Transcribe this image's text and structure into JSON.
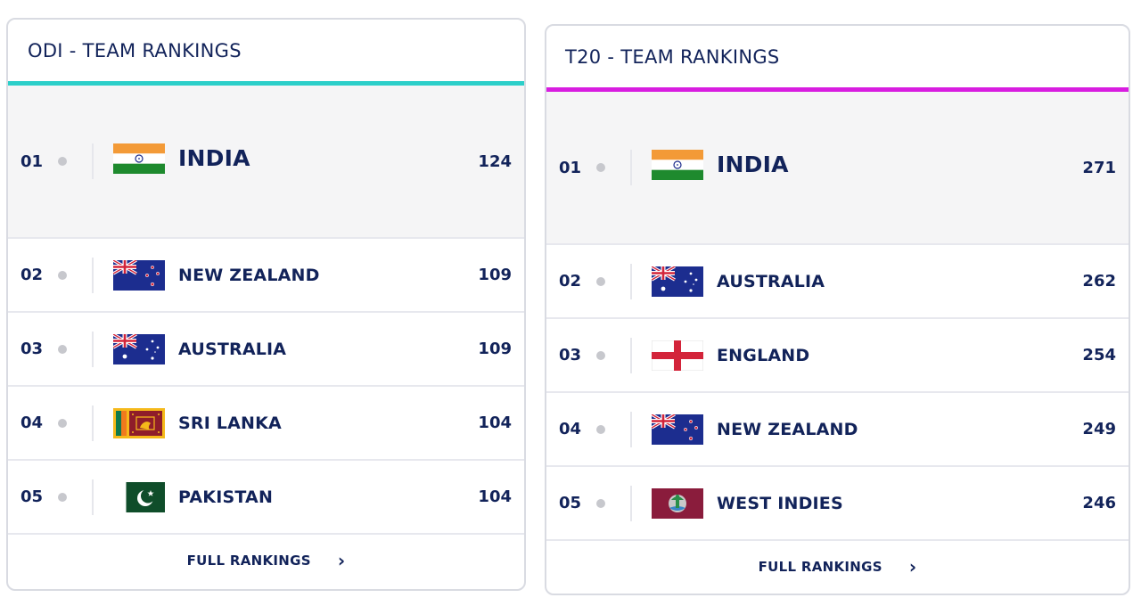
{
  "odi": {
    "title": "ODI - TEAM RANKINGS",
    "accent_color": "#2ccfc9",
    "rows": [
      {
        "rank": "01",
        "team": "INDIA",
        "points": "124",
        "flag": "india-flag-icon"
      },
      {
        "rank": "02",
        "team": "NEW ZEALAND",
        "points": "109",
        "flag": "new-zealand-flag-icon"
      },
      {
        "rank": "03",
        "team": "AUSTRALIA",
        "points": "109",
        "flag": "australia-flag-icon"
      },
      {
        "rank": "04",
        "team": "SRI LANKA",
        "points": "104",
        "flag": "sri-lanka-flag-icon"
      },
      {
        "rank": "05",
        "team": "PAKISTAN",
        "points": "104",
        "flag": "pakistan-flag-icon"
      }
    ],
    "footer_label": "FULL RANKINGS"
  },
  "t20": {
    "title": "T20 - TEAM RANKINGS",
    "accent_color": "#d81de0",
    "rows": [
      {
        "rank": "01",
        "team": "INDIA",
        "points": "271",
        "flag": "india-flag-icon"
      },
      {
        "rank": "02",
        "team": "AUSTRALIA",
        "points": "262",
        "flag": "australia-flag-icon"
      },
      {
        "rank": "03",
        "team": "ENGLAND",
        "points": "254",
        "flag": "england-flag-icon"
      },
      {
        "rank": "04",
        "team": "NEW ZEALAND",
        "points": "249",
        "flag": "new-zealand-flag-icon"
      },
      {
        "rank": "05",
        "team": "WEST INDIES",
        "points": "246",
        "flag": "west-indies-flag-icon"
      }
    ],
    "footer_label": "FULL RANKINGS"
  }
}
